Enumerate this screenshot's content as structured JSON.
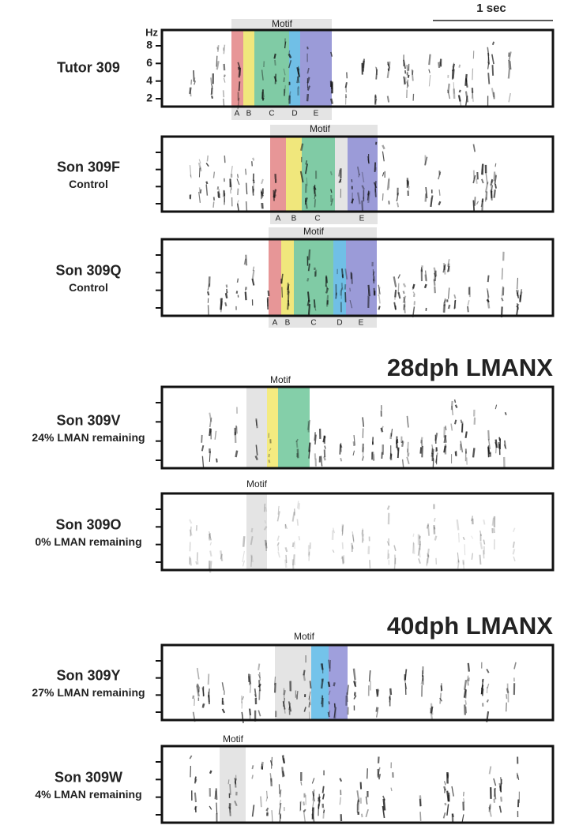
{
  "scale_bar": "1 sec",
  "frequency_axis": {
    "unit": "Hz",
    "ticks": [
      "8",
      "6",
      "4",
      "2"
    ]
  },
  "panels": [
    {
      "name": "Tutor 309",
      "motif": "Motif",
      "syllables": [
        "A",
        "B",
        "C",
        "D",
        "E"
      ]
    },
    {
      "name": "Son 309F",
      "subtitle": "Control",
      "motif": "Motif",
      "syllables": [
        "A",
        "B",
        "C",
        "E"
      ]
    },
    {
      "name": "Son 309Q",
      "subtitle": "Control",
      "motif": "Motif",
      "syllables": [
        "A",
        "B",
        "C",
        "D",
        "E"
      ]
    },
    {
      "name": "Son 309V",
      "subtitle": "24% LMAN remaining",
      "motif": "Motif"
    },
    {
      "name": "Son 309O",
      "subtitle": "0% LMAN remaining",
      "motif": "Motif"
    },
    {
      "name": "Son 309Y",
      "subtitle": "27% LMAN remaining",
      "motif": "Motif"
    },
    {
      "name": "Son 309W",
      "subtitle": "4% LMAN remaining",
      "motif": "Motif"
    }
  ],
  "section_titles": [
    "28dph LMANX",
    "40dph LMANX"
  ]
}
